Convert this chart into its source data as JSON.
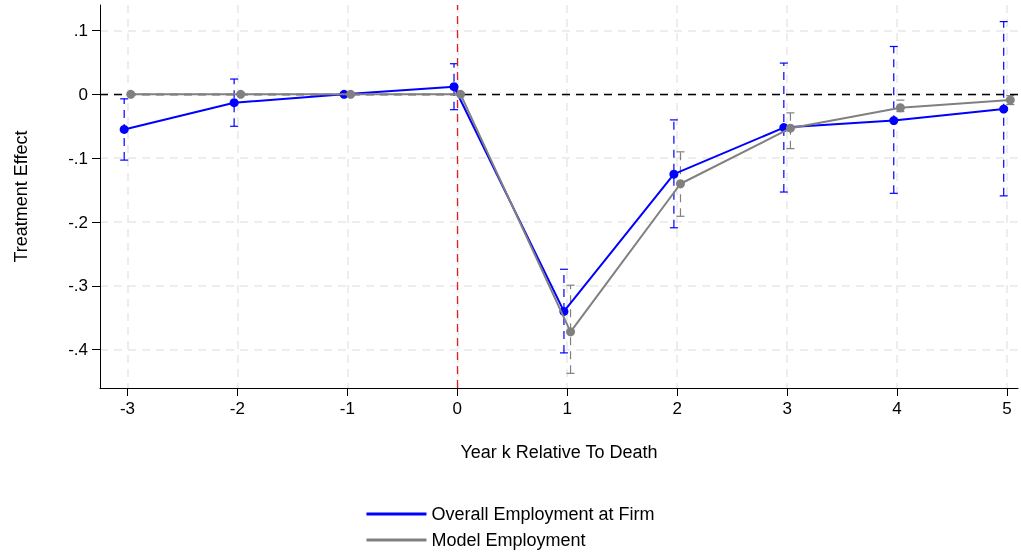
{
  "chart_data": {
    "type": "line",
    "xlabel": "Year k Relative To Death",
    "ylabel": "Treatment Effect",
    "xlim": [
      -3.25,
      5.1
    ],
    "xticks": [
      -3,
      -2,
      -1,
      0,
      1,
      2,
      3,
      4,
      5
    ],
    "ylim": [
      -0.46,
      0.14
    ],
    "yticks": [
      {
        "value": 0.1,
        "label": ".1"
      },
      0,
      {
        "value": -0.1,
        "label": "-.1"
      },
      {
        "value": -0.2,
        "label": "-.2"
      },
      {
        "value": -0.3,
        "label": "-.3"
      },
      {
        "value": -0.4,
        "label": "-.4"
      }
    ],
    "grid": true,
    "legend": "bottom",
    "marker": "circle",
    "ref_lines": [
      {
        "axis": "y",
        "value": 0,
        "color": "#000000",
        "line_style": "dashed"
      },
      {
        "axis": "x",
        "value": 0,
        "color": "#e02020",
        "line_style": "dashed"
      }
    ],
    "series": [
      {
        "name": "Overall Employment at Firm",
        "color": "#0000ff",
        "x": [
          -3.03,
          -2.03,
          -1.03,
          -0.03,
          0.97,
          1.97,
          2.97,
          3.97,
          4.97
        ],
        "values": [
          -0.055,
          -0.013,
          0,
          0.012,
          -0.34,
          -0.125,
          -0.052,
          -0.041,
          -0.023
        ],
        "errors": [
          [
            -0.103,
            -0.007
          ],
          [
            -0.05,
            0.024
          ],
          null,
          [
            -0.024,
            0.048
          ],
          [
            -0.405,
            -0.274
          ],
          [
            -0.209,
            -0.04
          ],
          [
            -0.153,
            0.049
          ],
          [
            -0.155,
            0.075
          ],
          [
            -0.159,
            0.114
          ]
        ]
      },
      {
        "name": "Model Employment",
        "color": "#808080",
        "x": [
          -2.97,
          -1.97,
          -0.97,
          0.03,
          1.03,
          2.03,
          3.03,
          4.03,
          5.03
        ],
        "values": [
          0,
          0,
          0,
          0,
          -0.372,
          -0.14,
          -0.053,
          -0.021,
          -0.009
        ],
        "errors": [
          null,
          null,
          null,
          null,
          [
            -0.437,
            -0.299
          ],
          [
            -0.191,
            -0.09
          ],
          [
            -0.085,
            -0.029
          ],
          [
            -0.027,
            -0.009
          ],
          [
            -0.016,
            -0.002
          ]
        ]
      }
    ]
  }
}
